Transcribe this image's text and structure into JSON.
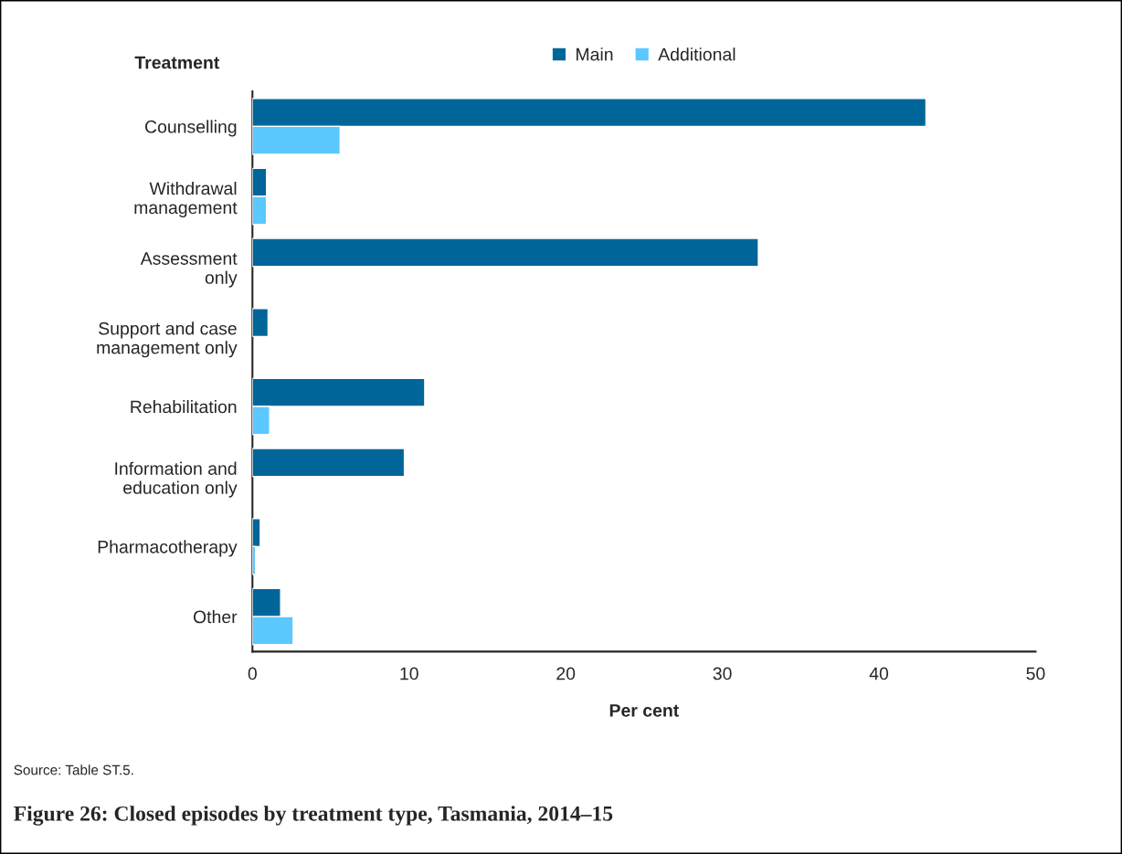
{
  "chart_data": {
    "type": "bar",
    "orientation": "horizontal",
    "title": "Figure 26: Closed episodes by treatment type, Tasmania, 2014–15",
    "xlabel": "Per cent",
    "ylabel": "Treatment",
    "categories": [
      "Counselling",
      "Withdrawal\nmanagement",
      "Assessment\nonly",
      "Support and case\nmanagement only",
      "Rehabilitation",
      "Information and\neducation only",
      "Pharmacotherapy",
      "Other"
    ],
    "series": [
      {
        "name": "Main",
        "color": "#006699",
        "values": [
          43.0,
          0.9,
          32.3,
          1.0,
          11.0,
          9.7,
          0.5,
          1.8
        ]
      },
      {
        "name": "Additional",
        "color": "#5bc8ff",
        "values": [
          5.6,
          0.9,
          null,
          null,
          1.1,
          null,
          0.2,
          2.6
        ]
      }
    ],
    "xlim": [
      0,
      50
    ],
    "xticks": [
      0,
      10,
      20,
      30,
      40,
      50
    ],
    "grid": false,
    "legend": "top",
    "annotations": [
      "Source: Table ST.5."
    ]
  }
}
